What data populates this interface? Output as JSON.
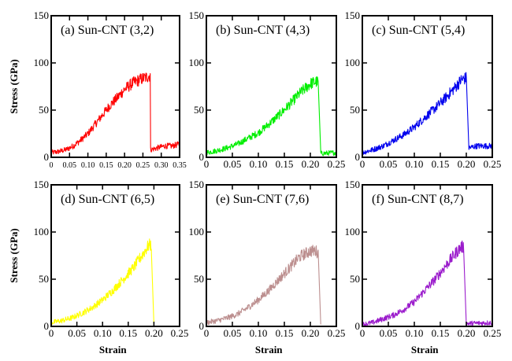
{
  "figure": {
    "ylabel": "Stress (GPa)",
    "xlabel": "Strain"
  },
  "chart_data": [
    {
      "type": "line",
      "panel": "a",
      "title": "(a) Sun-CNT (3,2)",
      "color": "#ff0000",
      "xlim": [
        0,
        0.35
      ],
      "ylim": [
        0,
        150
      ],
      "xticks": [
        "0",
        "0.05",
        "0.10",
        "0.15",
        "0.20",
        "0.25",
        "0.30",
        "0.35"
      ],
      "yticks": [
        "0",
        "50",
        "100",
        "150"
      ],
      "ylabel": "Stress (GPa)",
      "xlabel": "",
      "x": [
        0,
        0.02,
        0.04,
        0.06,
        0.08,
        0.1,
        0.12,
        0.14,
        0.16,
        0.18,
        0.2,
        0.22,
        0.24,
        0.26,
        0.27,
        0.271,
        0.29,
        0.31,
        0.33,
        0.35
      ],
      "y": [
        5,
        6,
        8,
        12,
        18,
        25,
        35,
        45,
        55,
        63,
        72,
        78,
        82,
        85,
        87,
        8,
        10,
        12,
        12,
        14
      ]
    },
    {
      "type": "line",
      "panel": "b",
      "title": "(b) Sun-CNT (4,3)",
      "color": "#00ee00",
      "xlim": [
        0,
        0.25
      ],
      "ylim": [
        0,
        150
      ],
      "xticks": [
        "0",
        "0.05",
        "0.10",
        "0.15",
        "0.20",
        "0.25"
      ],
      "yticks": [
        "0",
        "50",
        "100",
        "150"
      ],
      "ylabel": "",
      "xlabel": "",
      "x": [
        0,
        0.02,
        0.04,
        0.06,
        0.08,
        0.1,
        0.12,
        0.14,
        0.16,
        0.18,
        0.2,
        0.21,
        0.215,
        0.22,
        0.25
      ],
      "y": [
        5,
        7,
        10,
        14,
        20,
        26,
        35,
        45,
        56,
        68,
        78,
        80,
        80,
        4,
        5
      ]
    },
    {
      "type": "line",
      "panel": "c",
      "title": "(c) Sun-CNT (5,4)",
      "color": "#0000ee",
      "xlim": [
        0,
        0.25
      ],
      "ylim": [
        0,
        150
      ],
      "xticks": [
        "0",
        "0.05",
        "0.10",
        "0.15",
        "0.20",
        "0.25"
      ],
      "yticks": [
        "0",
        "50",
        "100",
        "150"
      ],
      "ylabel": "",
      "xlabel": "",
      "x": [
        0,
        0.02,
        0.04,
        0.06,
        0.08,
        0.1,
        0.12,
        0.14,
        0.16,
        0.18,
        0.19,
        0.2,
        0.205,
        0.22,
        0.25
      ],
      "y": [
        5,
        8,
        12,
        18,
        24,
        32,
        42,
        52,
        63,
        75,
        82,
        84,
        10,
        12,
        12
      ]
    },
    {
      "type": "line",
      "panel": "d",
      "title": "(d) Sun-CNT (6,5)",
      "color": "#ffff00",
      "xlim": [
        0,
        0.25
      ],
      "ylim": [
        0,
        150
      ],
      "xticks": [
        "0",
        "0.05",
        "0.10",
        "0.15",
        "0.20",
        "0.25"
      ],
      "yticks": [
        "0",
        "50",
        "100",
        "150"
      ],
      "ylabel": "Stress (GPa)",
      "xlabel": "Strain",
      "x": [
        0,
        0.02,
        0.04,
        0.06,
        0.08,
        0.1,
        0.12,
        0.14,
        0.16,
        0.18,
        0.19,
        0.195,
        0.2
      ],
      "y": [
        4,
        6,
        9,
        14,
        20,
        28,
        38,
        50,
        62,
        78,
        86,
        86,
        2
      ]
    },
    {
      "type": "line",
      "panel": "e",
      "title": "(e) Sun-CNT (7,6)",
      "color": "#bc8f8f",
      "xlim": [
        0,
        0.25
      ],
      "ylim": [
        0,
        150
      ],
      "xticks": [
        "0",
        "0.05",
        "0.10",
        "0.15",
        "0.20",
        "0.25"
      ],
      "yticks": [
        "0",
        "50",
        "100",
        "150"
      ],
      "ylabel": "",
      "xlabel": "Strain",
      "x": [
        0,
        0.02,
        0.04,
        0.06,
        0.08,
        0.1,
        0.12,
        0.14,
        0.16,
        0.18,
        0.2,
        0.21,
        0.215,
        0.22
      ],
      "y": [
        4,
        6,
        9,
        13,
        20,
        28,
        38,
        50,
        62,
        74,
        80,
        80,
        78,
        2
      ]
    },
    {
      "type": "line",
      "panel": "f",
      "title": "(f) Sun-CNT (8,7)",
      "color": "#9b1ccc",
      "xlim": [
        0,
        0.25
      ],
      "ylim": [
        0,
        150
      ],
      "xticks": [
        "0",
        "0.05",
        "0.10",
        "0.15",
        "0.20",
        "0.25"
      ],
      "yticks": [
        "0",
        "50",
        "100",
        "150"
      ],
      "ylabel": "",
      "xlabel": "Strain",
      "x": [
        0,
        0.02,
        0.04,
        0.06,
        0.08,
        0.1,
        0.12,
        0.14,
        0.16,
        0.18,
        0.19,
        0.195,
        0.2,
        0.25
      ],
      "y": [
        2,
        4,
        8,
        12,
        18,
        26,
        38,
        50,
        64,
        78,
        84,
        84,
        3,
        4
      ]
    }
  ]
}
